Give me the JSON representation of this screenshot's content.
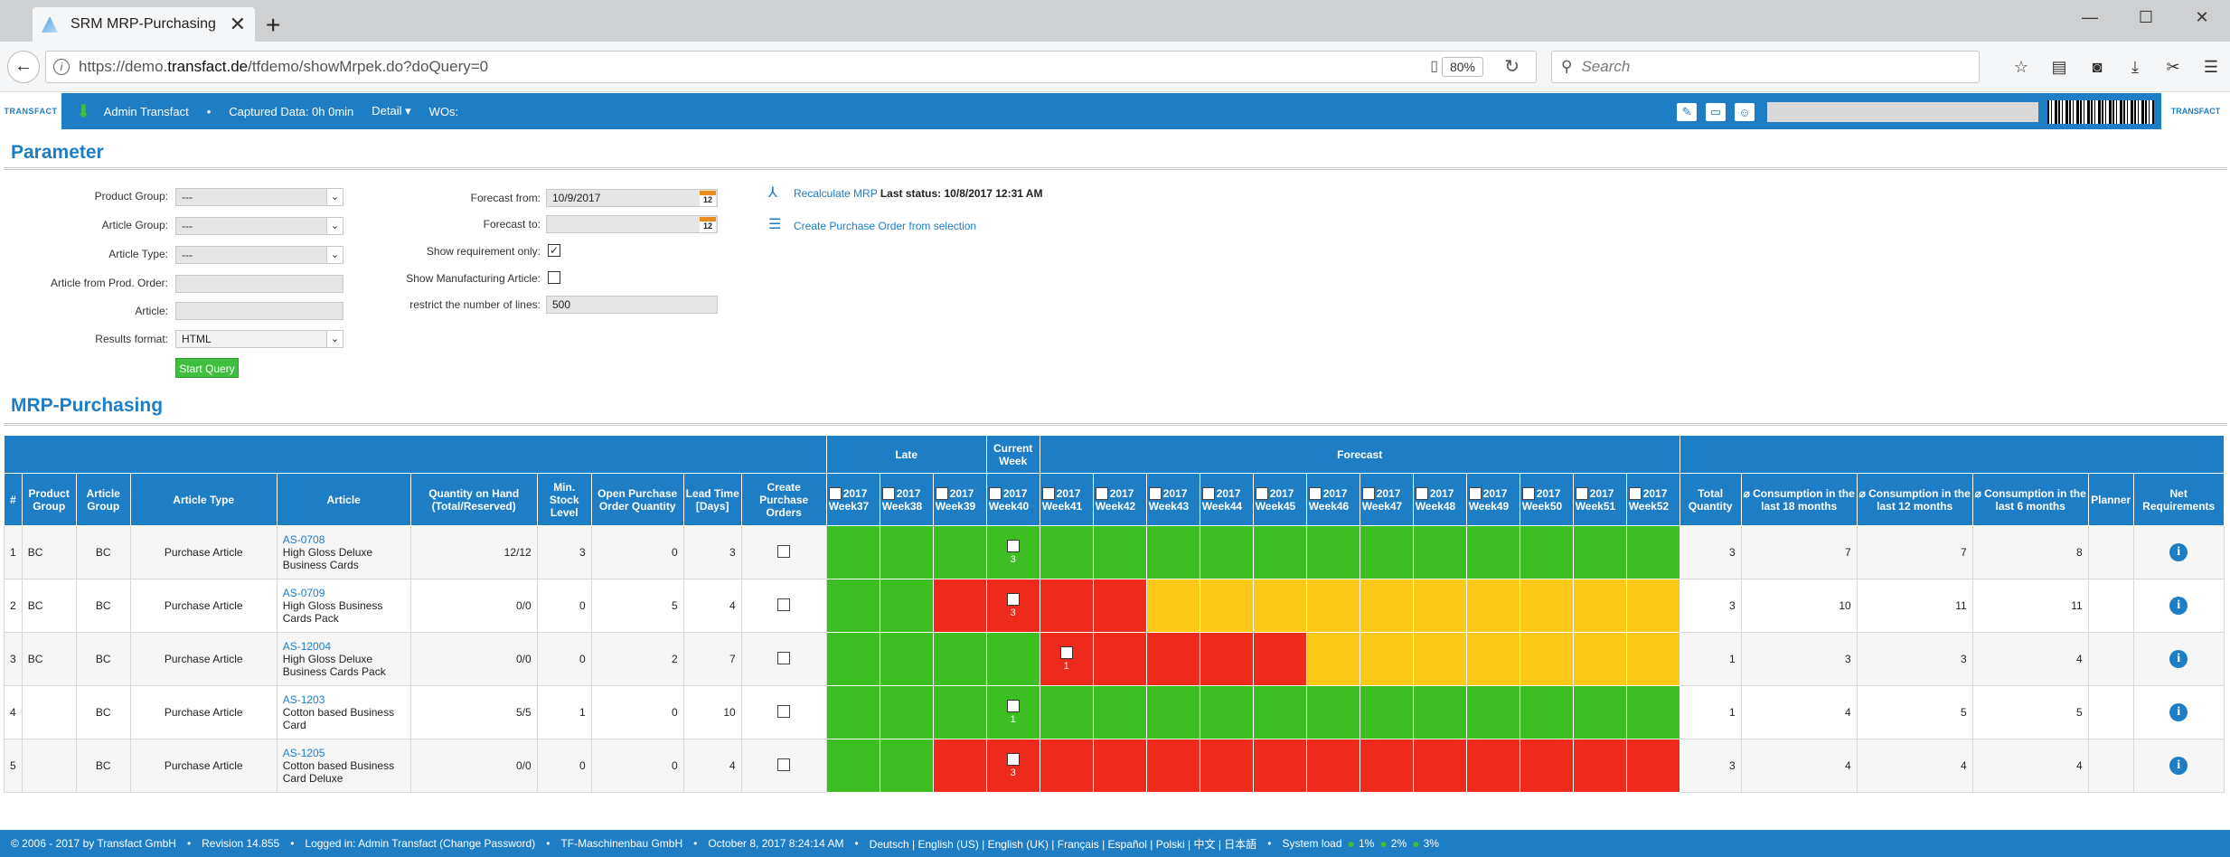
{
  "browser": {
    "tab_title": "SRM MRP-Purchasing",
    "url_prefix": "https://demo.",
    "url_domain": "transfact.de",
    "url_path": "/tfdemo/showMrpek.do?doQuery=0",
    "zoom": "80%",
    "search_placeholder": "Search"
  },
  "app_header": {
    "user": "Admin Transfact",
    "captured": "Captured Data: 0h 0min",
    "detail": "Detail ▾",
    "wos": "WOs:",
    "logo_text": "TRANSFACT"
  },
  "parameter": {
    "title": "Parameter",
    "product_group_label": "Product Group:",
    "product_group_value": "---",
    "article_group_label": "Article Group:",
    "article_group_value": "---",
    "article_type_label": "Article Type:",
    "article_type_value": "---",
    "article_prod_order_label": "Article from Prod. Order:",
    "article_label": "Article:",
    "results_format_label": "Results format:",
    "results_format_value": "HTML",
    "start_query": "Start Query",
    "forecast_from_label": "Forecast from:",
    "forecast_from_value": "10/9/2017",
    "forecast_to_label": "Forecast to:",
    "calendar_day": "12",
    "show_req_label": "Show requirement only:",
    "show_req_checked": "✓",
    "show_manu_label": "Show Manufacturing Article:",
    "restrict_label": "restrict the number of lines:",
    "restrict_value": "500",
    "recalc_link": "Recalculate MRP",
    "recalc_status": "Last status: 10/8/2017 12:31 AM",
    "create_po_link": "Create Purchase Order from selection"
  },
  "mrp": {
    "title": "MRP-Purchasing",
    "group_late": "Late",
    "group_current": "Current Week",
    "group_forecast": "Forecast",
    "headers": {
      "hash": "#",
      "product_group": "Product Group",
      "article_group": "Article Group",
      "article_type": "Article Type",
      "article": "Article",
      "qty_on_hand": "Quantity on Hand (Total/Reserved)",
      "min_stock": "Min. Stock Level",
      "open_po": "Open Purchase Order Quantity",
      "lead_time": "Lead Time [Days]",
      "create_po": "Create Purchase Orders",
      "total_qty": "Total Quantity",
      "cons18": "⌀ Consumption in the last 18 months",
      "cons12": "⌀ Consumption in the last 12 months",
      "cons6": "⌀ Consumption in the last 6 months",
      "planner": "Planner",
      "net_req": "Net Requirements"
    },
    "week_year": "2017",
    "weeks": [
      "Week37",
      "Week38",
      "Week39",
      "Week40",
      "Week41",
      "Week42",
      "Week43",
      "Week44",
      "Week45",
      "Week46",
      "Week47",
      "Week48",
      "Week49",
      "Week50",
      "Week51",
      "Week52"
    ],
    "rows": [
      {
        "n": "1",
        "pg": "BC",
        "ag": "BC",
        "type": "Purchase Article",
        "code": "AS-0708",
        "desc": "High Gloss Deluxe Business  Cards",
        "qoh": "12/12",
        "min": "3",
        "opo": "0",
        "lead": "3",
        "cur_qty": "3",
        "fc_qty": "",
        "total": "3",
        "c18": "7",
        "c12": "7",
        "c6": "8",
        "cells": "GGGcGGGGGGGGGGGG"
      },
      {
        "n": "2",
        "pg": "BC",
        "ag": "BC",
        "type": "Purchase Article",
        "code": "AS-0709",
        "desc": "High Gloss Business Cards Pack",
        "qoh": "0/0",
        "min": "0",
        "opo": "5",
        "lead": "4",
        "cur_qty": "3",
        "fc_qty": "",
        "total": "3",
        "c18": "10",
        "c12": "11",
        "c6": "11",
        "cells": "GGRrRRYYYYYYYYYY"
      },
      {
        "n": "3",
        "pg": "BC",
        "ag": "BC",
        "type": "Purchase Article",
        "code": "AS-12004",
        "desc": "High Gloss Deluxe Business  Cards Pack",
        "qoh": "0/0",
        "min": "0",
        "opo": "2",
        "lead": "7",
        "cur_qty": "",
        "fc_qty": "1",
        "total": "1",
        "c18": "3",
        "c12": "3",
        "c6": "4",
        "cells": "GGGGfRRRRYYYYYYY"
      },
      {
        "n": "4",
        "pg": "",
        "ag": "BC",
        "type": "Purchase Article",
        "code": "AS-1203",
        "desc": "Cotton based Business Card",
        "qoh": "5/5",
        "min": "1",
        "opo": "0",
        "lead": "10",
        "cur_qty": "1",
        "fc_qty": "",
        "total": "1",
        "c18": "4",
        "c12": "5",
        "c6": "5",
        "cells": "GGGcGGGGGGGGGGGG"
      },
      {
        "n": "5",
        "pg": "",
        "ag": "BC",
        "type": "Purchase Article",
        "code": "AS-1205",
        "desc": "Cotton based Business Card  Deluxe",
        "qoh": "0/0",
        "min": "0",
        "opo": "0",
        "lead": "4",
        "cur_qty": "3",
        "fc_qty": "",
        "total": "3",
        "c18": "4",
        "c12": "4",
        "c6": "4",
        "cells": "GGRrRRRRRRRRRRRR"
      }
    ],
    "cell_colors": {
      "G": "#3dbf23",
      "R": "#ee2a1c",
      "Y": "#fdc918"
    }
  },
  "footer": {
    "copyright": "© 2006 - 2017 by Transfact GmbH",
    "revision": "Revision  14.855",
    "logged_in": "Logged in: Admin Transfact (Change Password)",
    "company": "TF-Maschinenbau GmbH",
    "datetime": "October 8, 2017 8:24:14 AM",
    "languages": "Deutsch | English (US) | English (UK) | Français | Español | Polski | 中文 | 日本語",
    "system_load": "System load",
    "load1": "1%",
    "load2": "2%",
    "load3": "3%"
  }
}
